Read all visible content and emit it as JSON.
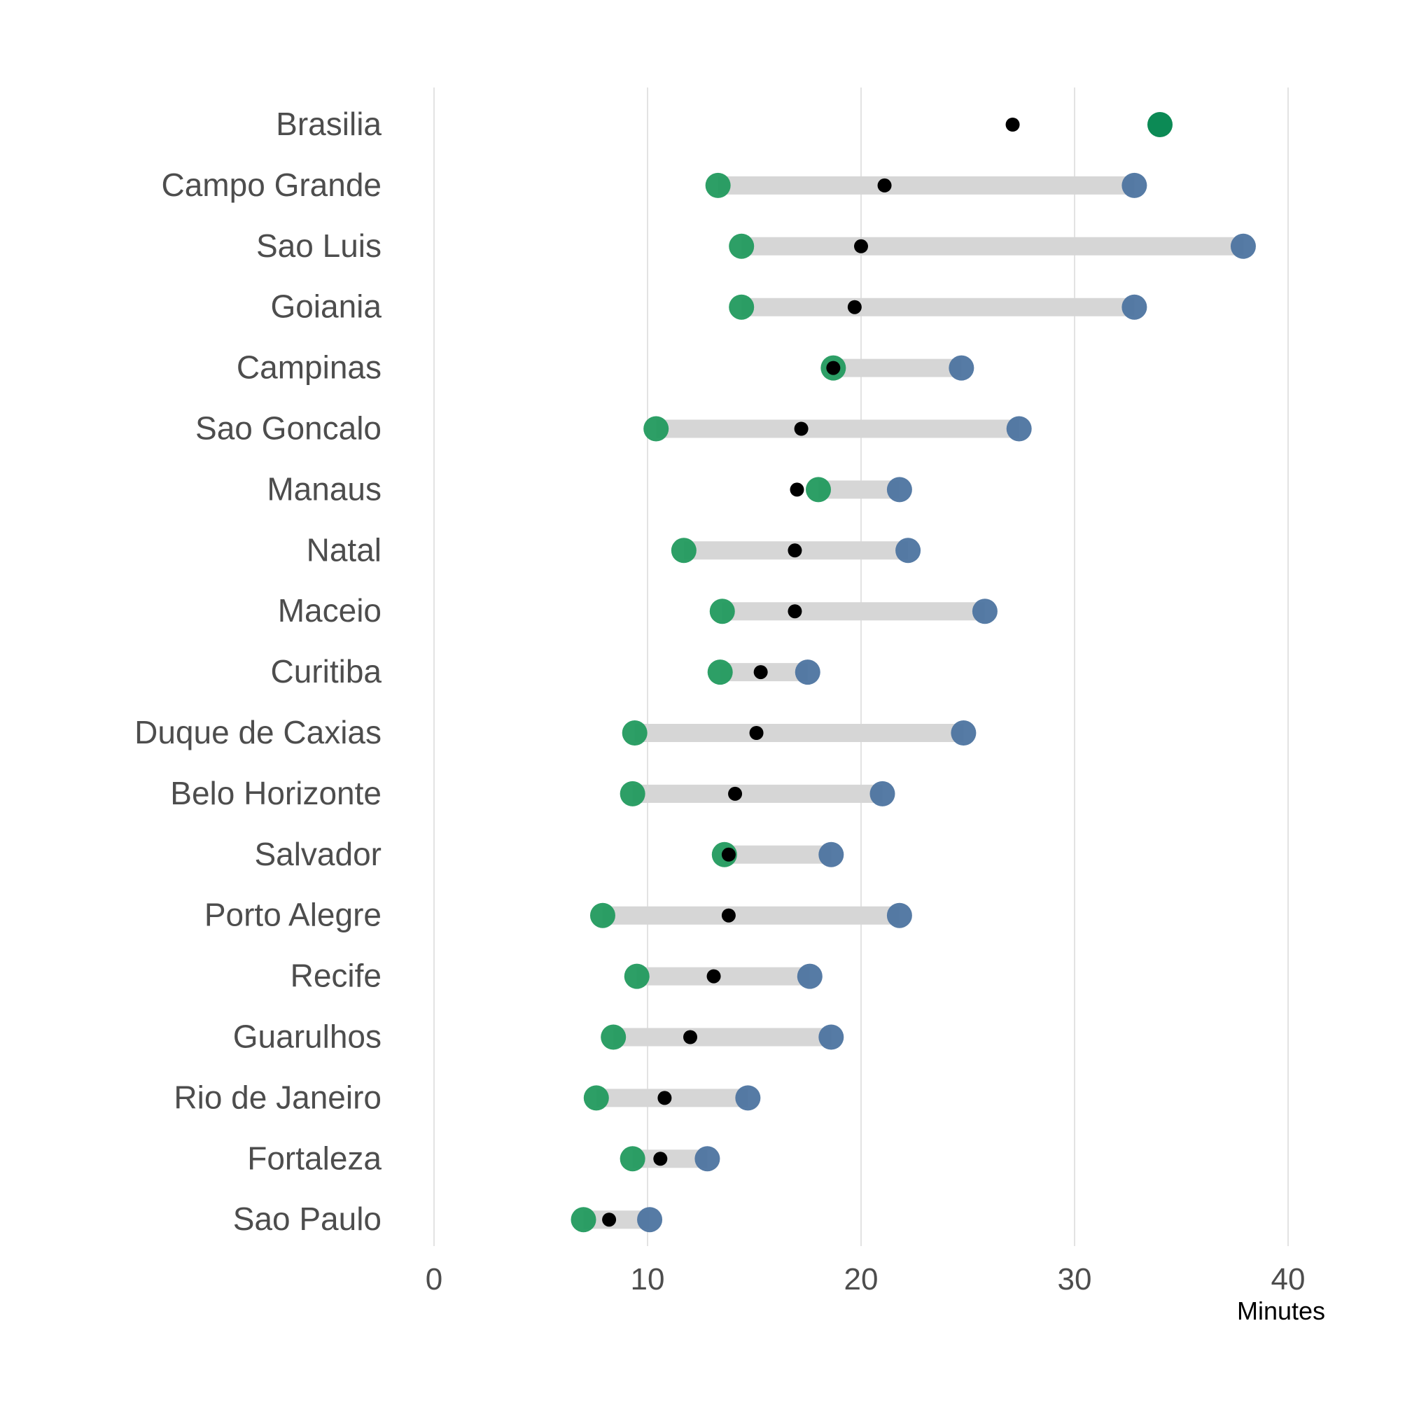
{
  "chart_data": {
    "type": "dumbbell",
    "xlabel": "Minutes",
    "ylabel": "",
    "title": "",
    "xlim": [
      0,
      42.5
    ],
    "x_ticks": [
      0,
      10,
      20,
      30,
      40
    ],
    "grid": "vertical major",
    "legend": "none",
    "colors": {
      "low": "#229a5e",
      "high": "#4d74a0",
      "mid": "#000000",
      "bar": "#d6d6d6",
      "single": "#0c8a55",
      "grid": "#e3e3e3"
    },
    "categories": [
      "Brasilia",
      "Campo Grande",
      "Sao Luis",
      "Goiania",
      "Campinas",
      "Sao Goncalo",
      "Manaus",
      "Natal",
      "Maceio",
      "Curitiba",
      "Duque de Caxias",
      "Belo Horizonte",
      "Salvador",
      "Porto Alegre",
      "Recife",
      "Guarulhos",
      "Rio de Janeiro",
      "Fortaleza",
      "Sao Paulo"
    ],
    "low": [
      34.0,
      13.3,
      14.4,
      14.4,
      18.7,
      10.4,
      18.0,
      11.7,
      13.5,
      13.4,
      9.4,
      9.3,
      13.6,
      7.9,
      9.5,
      8.4,
      7.6,
      9.3,
      7.0
    ],
    "mid": [
      27.1,
      21.1,
      20.0,
      19.7,
      18.7,
      17.2,
      17.0,
      16.9,
      16.9,
      15.3,
      15.1,
      14.1,
      13.8,
      13.8,
      13.1,
      12.0,
      10.8,
      10.6,
      8.2
    ],
    "high": [
      null,
      32.8,
      37.9,
      32.8,
      24.7,
      27.4,
      21.8,
      22.2,
      25.8,
      17.5,
      24.8,
      21.0,
      18.6,
      21.8,
      17.6,
      18.6,
      14.7,
      12.8,
      10.1
    ]
  }
}
